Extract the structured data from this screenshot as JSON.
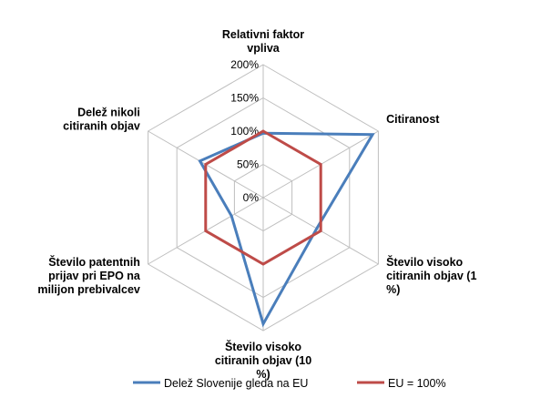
{
  "chart_data": {
    "type": "radar",
    "categories": [
      [
        "Relativni faktor",
        "vpliva"
      ],
      [
        "Citiranost"
      ],
      [
        "Število visoko",
        "citiranih objav (1",
        "%)"
      ],
      [
        "Število visoko",
        "citiranih objav (10",
        "%)"
      ],
      [
        "Število patentnih",
        "prijav pri EPO na",
        "milijon prebivalcev"
      ],
      [
        "Delež nikoli",
        "citiranih objav"
      ]
    ],
    "ticks": [
      "0%",
      "50%",
      "100%",
      "150%",
      "200%"
    ],
    "tick_values": [
      0,
      50,
      100,
      150,
      200
    ],
    "rmin": 0,
    "rmax": 200,
    "grid": true,
    "legend_position": "bottom",
    "series": [
      {
        "name": "Delež Slovenije gleda na EU",
        "color": "#4a7ebb",
        "values": [
          97,
          190,
          93,
          190,
          55,
          110
        ]
      },
      {
        "name": "EU = 100%",
        "color": "#be4b48",
        "values": [
          100,
          100,
          100,
          100,
          100,
          100
        ]
      }
    ]
  }
}
